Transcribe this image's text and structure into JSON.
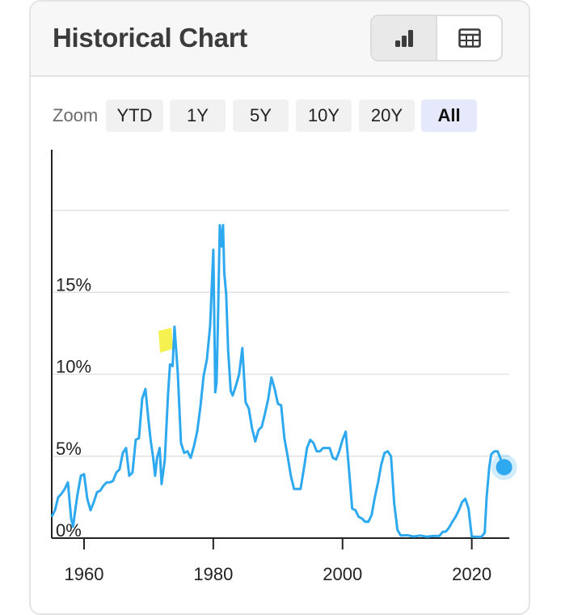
{
  "card": {
    "title": "Historical Chart",
    "view_toggle": [
      {
        "name": "chart-view",
        "icon": "bar-chart-icon",
        "active": true
      },
      {
        "name": "table-view",
        "icon": "table-icon",
        "active": false
      }
    ]
  },
  "zoom": {
    "label": "Zoom",
    "buttons": [
      "YTD",
      "1Y",
      "5Y",
      "10Y",
      "20Y",
      "All"
    ],
    "active": "All"
  },
  "colors": {
    "line": "#2ea9f0",
    "grid": "#e2e2e2",
    "axis": "#222222",
    "highlight": "#f3ee33",
    "zoom_active_bg": "#e6e8fb"
  },
  "chart_data": {
    "type": "line",
    "title": "",
    "xlabel": "",
    "ylabel": "",
    "xlim": [
      1955,
      2026
    ],
    "ylim": [
      0,
      20
    ],
    "yticks": [
      0,
      5,
      10,
      15
    ],
    "ytick_labels": [
      "0%",
      "5%",
      "10%",
      "15%"
    ],
    "xticks": [
      1960,
      1980,
      2000,
      2020
    ],
    "xtick_labels": [
      "1960",
      "1980",
      "2000",
      "2020"
    ],
    "grid": true,
    "legend": "none",
    "series": [
      {
        "x": [
          1955,
          1955.5,
          1956,
          1956.5,
          1957,
          1957.5,
          1958,
          1958.3,
          1958.7,
          1959,
          1959.5,
          1960,
          1960.5,
          1961,
          1961.5,
          1962,
          1962.5,
          1963,
          1963.5,
          1964,
          1964.5,
          1965,
          1965.5,
          1966,
          1966.5,
          1967,
          1967.5,
          1968,
          1968.5,
          1969,
          1969.5,
          1970,
          1970.3,
          1970.7,
          1971,
          1971.3,
          1971.7,
          1972,
          1972.5,
          1973,
          1973.3,
          1973.7,
          1974,
          1974.5,
          1975,
          1975.5,
          1976,
          1976.5,
          1977,
          1977.5,
          1978,
          1978.5,
          1979,
          1979.5,
          1980,
          1980.3,
          1980.5,
          1980.7,
          1981,
          1981.3,
          1981.5,
          1981.7,
          1982,
          1982.3,
          1982.7,
          1983,
          1983.5,
          1984,
          1984.5,
          1985,
          1985.5,
          1986,
          1986.5,
          1987,
          1987.5,
          1988,
          1988.5,
          1989,
          1989.5,
          1990,
          1990.5,
          1991,
          1991.5,
          1992,
          1992.5,
          1993,
          1993.5,
          1994,
          1994.5,
          1995,
          1995.5,
          1996,
          1996.5,
          1997,
          1997.5,
          1998,
          1998.5,
          1999,
          1999.5,
          2000,
          2000.5,
          2001,
          2001.5,
          2002,
          2002.5,
          2003,
          2003.5,
          2004,
          2004.5,
          2005,
          2005.5,
          2006,
          2006.5,
          2007,
          2007.5,
          2008,
          2008.5,
          2009,
          2010,
          2011,
          2012,
          2013,
          2014,
          2015,
          2015.5,
          2016,
          2016.5,
          2017,
          2017.5,
          2018,
          2018.5,
          2019,
          2019.5,
          2020,
          2020.5,
          2021,
          2021.5,
          2022,
          2022.3,
          2022.7,
          2023,
          2023.5,
          2024,
          2024.5,
          2025
        ],
        "y": [
          1.3,
          1.7,
          2.5,
          2.7,
          3.0,
          3.4,
          1.2,
          0.7,
          1.9,
          2.7,
          3.8,
          3.9,
          2.4,
          1.7,
          2.2,
          2.8,
          2.9,
          3.2,
          3.4,
          3.4,
          3.5,
          4.0,
          4.2,
          5.2,
          5.5,
          3.8,
          4.0,
          6.0,
          6.1,
          8.5,
          9.1,
          7.1,
          6.0,
          4.9,
          3.8,
          4.9,
          5.5,
          3.3,
          4.8,
          8.8,
          10.6,
          10.5,
          12.9,
          10.1,
          5.8,
          5.2,
          5.3,
          4.9,
          5.6,
          6.5,
          8.0,
          9.9,
          10.9,
          12.9,
          17.6,
          8.9,
          9.5,
          12.9,
          19.1,
          17.8,
          19.1,
          16.2,
          14.9,
          11.5,
          9.0,
          8.7,
          9.3,
          10.0,
          11.6,
          8.3,
          7.9,
          6.7,
          5.9,
          6.6,
          6.8,
          7.6,
          8.5,
          9.8,
          9.1,
          8.2,
          8.1,
          6.1,
          5.0,
          3.8,
          3.0,
          3.0,
          3.0,
          4.2,
          5.5,
          6.0,
          5.8,
          5.3,
          5.3,
          5.5,
          5.5,
          5.5,
          4.9,
          4.8,
          5.3,
          6.0,
          6.5,
          4.2,
          1.8,
          1.7,
          1.3,
          1.2,
          1.0,
          1.0,
          1.4,
          2.5,
          3.4,
          4.5,
          5.2,
          5.3,
          5.0,
          2.1,
          0.5,
          0.16,
          0.18,
          0.1,
          0.16,
          0.09,
          0.13,
          0.14,
          0.38,
          0.4,
          0.66,
          1.0,
          1.3,
          1.7,
          2.2,
          2.4,
          1.8,
          0.1,
          0.09,
          0.08,
          0.08,
          0.33,
          2.5,
          4.3,
          5.1,
          5.3,
          5.3,
          4.8,
          4.33
        ]
      }
    ],
    "last_point": {
      "x": 2025,
      "y": 4.33
    }
  }
}
